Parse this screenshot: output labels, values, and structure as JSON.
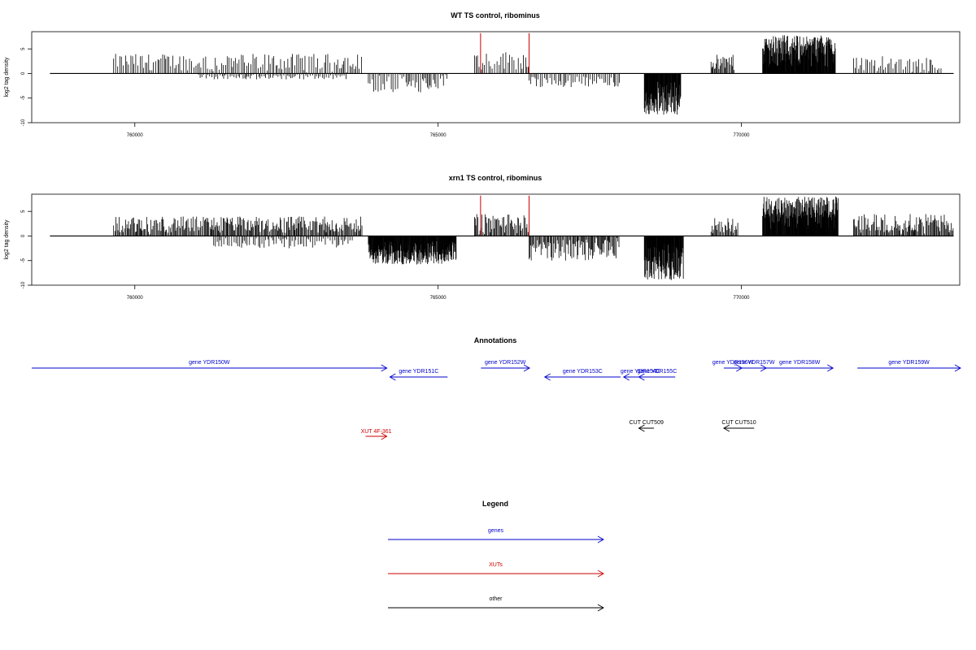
{
  "chart_data": [
    {
      "type": "bar",
      "title": "WT TS control, ribominus",
      "ylabel": "log2 tag density",
      "xlabel": "",
      "xlim": [
        758300,
        773600
      ],
      "ylim": [
        -10,
        8.5
      ],
      "x_ticks": [
        760000,
        765000,
        770000
      ],
      "y_ticks": [
        -10,
        -5,
        0,
        5
      ],
      "grid": false,
      "baseline": [
        758600,
        773500
      ],
      "coverage_blocks": [
        {
          "start": 759650,
          "end": 763750,
          "strand": "+",
          "peak": 4.0,
          "density": "sparse"
        },
        {
          "start": 761050,
          "end": 763500,
          "strand": "-",
          "peak": -1.2,
          "density": "sparse"
        },
        {
          "start": 763850,
          "end": 765150,
          "strand": "-",
          "peak": -4.0,
          "density": "sparse"
        },
        {
          "start": 765600,
          "end": 766500,
          "strand": "+",
          "peak": 4.5,
          "density": "sparse"
        },
        {
          "start": 766500,
          "end": 768000,
          "strand": "-",
          "peak": -2.8,
          "density": "sparse"
        },
        {
          "start": 768400,
          "end": 769000,
          "strand": "-",
          "peak": -8.5,
          "density": "dense"
        },
        {
          "start": 769500,
          "end": 769900,
          "strand": "+",
          "peak": 3.8,
          "density": "medium"
        },
        {
          "start": 770350,
          "end": 771550,
          "strand": "+",
          "peak": 7.8,
          "density": "dense"
        },
        {
          "start": 771850,
          "end": 773300,
          "strand": "+",
          "peak": 3.5,
          "density": "sparse"
        }
      ],
      "highlight_lines": [
        {
          "x": 765700,
          "y": 8.2,
          "color": "#cc0000"
        },
        {
          "x": 766500,
          "y": 8.2,
          "color": "#cc0000"
        }
      ]
    },
    {
      "type": "bar",
      "title": "xrn1 TS control, ribominus",
      "ylabel": "log2 tag density",
      "xlabel": "",
      "xlim": [
        758300,
        773600
      ],
      "ylim": [
        -10,
        8.5
      ],
      "x_ticks": [
        760000,
        765000,
        770000
      ],
      "y_ticks": [
        -10,
        -5,
        0,
        5
      ],
      "grid": false,
      "baseline": [
        758600,
        773500
      ],
      "coverage_blocks": [
        {
          "start": 759650,
          "end": 763750,
          "strand": "+",
          "peak": 4.0,
          "density": "medium"
        },
        {
          "start": 761300,
          "end": 763600,
          "strand": "-",
          "peak": -2.5,
          "density": "sparse"
        },
        {
          "start": 763850,
          "end": 765300,
          "strand": "-",
          "peak": -5.8,
          "density": "dense"
        },
        {
          "start": 765600,
          "end": 766500,
          "strand": "+",
          "peak": 4.5,
          "density": "medium"
        },
        {
          "start": 766500,
          "end": 768000,
          "strand": "-",
          "peak": -5.0,
          "density": "medium"
        },
        {
          "start": 768400,
          "end": 769050,
          "strand": "-",
          "peak": -9.0,
          "density": "dense"
        },
        {
          "start": 769500,
          "end": 769950,
          "strand": "+",
          "peak": 3.8,
          "density": "medium"
        },
        {
          "start": 770350,
          "end": 771600,
          "strand": "+",
          "peak": 8.0,
          "density": "dense"
        },
        {
          "start": 771850,
          "end": 773500,
          "strand": "+",
          "peak": 4.5,
          "density": "medium"
        }
      ],
      "highlight_lines": [
        {
          "x": 765700,
          "y": 8.2,
          "color": "#cc0000"
        },
        {
          "x": 766500,
          "y": 8.2,
          "color": "#cc0000"
        }
      ]
    }
  ],
  "annotations": {
    "title": "Annotations",
    "features": [
      {
        "label": "gene YDR150W",
        "start": 758300,
        "end": 764150,
        "strand": "+",
        "row": 0,
        "kind": "gene"
      },
      {
        "label": "gene YDR151C",
        "start": 764200,
        "end": 765150,
        "strand": "-",
        "row": 1,
        "kind": "gene"
      },
      {
        "label": "gene YDR152W",
        "start": 765700,
        "end": 766500,
        "strand": "+",
        "row": 0,
        "kind": "gene"
      },
      {
        "label": "gene YDR153C",
        "start": 766750,
        "end": 768000,
        "strand": "-",
        "row": 1,
        "kind": "gene"
      },
      {
        "label": "gene YDR154C",
        "start": 768050,
        "end": 768600,
        "strand": "-",
        "row": 1,
        "kind": "gene"
      },
      {
        "label": "gene YDR155C",
        "start": 768300,
        "end": 768900,
        "strand": "-",
        "row": 1,
        "kind": "gene"
      },
      {
        "label": "gene YDR156W",
        "start": 769700,
        "end": 770000,
        "strand": "+",
        "row": 0,
        "kind": "gene"
      },
      {
        "label": "gene YDR157W",
        "start": 770000,
        "end": 770400,
        "strand": "+",
        "row": 0,
        "kind": "gene"
      },
      {
        "label": "gene YDR158W",
        "start": 770400,
        "end": 771500,
        "strand": "+",
        "row": 0,
        "kind": "gene"
      },
      {
        "label": "gene YDR159W",
        "start": 771900,
        "end": 773600,
        "strand": "+",
        "row": 0,
        "kind": "gene"
      },
      {
        "label": "CUT CUT509",
        "start": 768300,
        "end": 768550,
        "strand": "-",
        "row": 2,
        "kind": "other"
      },
      {
        "label": "CUT CUT510",
        "start": 769700,
        "end": 770200,
        "strand": "-",
        "row": 2,
        "kind": "other"
      },
      {
        "label": "XUT 4F-361",
        "start": 763800,
        "end": 764150,
        "strand": "+",
        "row": 3,
        "kind": "xut"
      }
    ]
  },
  "legend": {
    "title": "Legend",
    "items": [
      {
        "label": "genes",
        "color": "#0000cc"
      },
      {
        "label": "XUTs",
        "color": "#cc0000"
      },
      {
        "label": "other",
        "color": "#000000"
      }
    ]
  },
  "colors": {
    "gene": "#0000cc",
    "xut": "#cc0000",
    "other": "#000000",
    "signal": "#000000"
  }
}
